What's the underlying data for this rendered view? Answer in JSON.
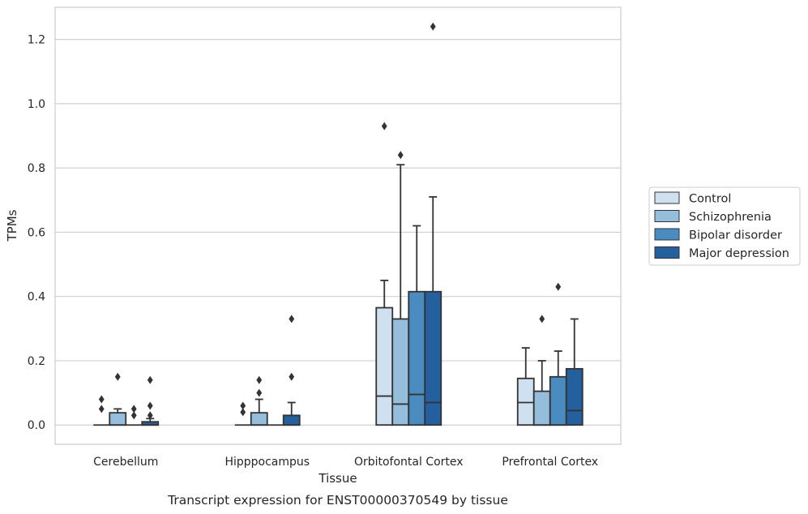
{
  "caption": "Transcript expression for ENST00000370549 by tissue",
  "chart_data": {
    "type": "box",
    "title": "",
    "xlabel": "Tissue",
    "ylabel": "TPMs",
    "ylim": [
      -0.06,
      1.3
    ],
    "yticks": [
      0.0,
      0.2,
      0.4,
      0.6,
      0.8,
      1.0,
      1.2
    ],
    "ytick_labels": [
      "0.0",
      "0.2",
      "0.4",
      "0.6",
      "0.8",
      "1.0",
      "1.2"
    ],
    "grid": "horizontal",
    "legend_position": "right",
    "categories": [
      "Cerebellum",
      "Hipppocampus",
      "Orbitofontal Cortex",
      "Prefrontal Cortex"
    ],
    "colors": [
      "#cfe0f0",
      "#94bedb",
      "#4a8cc0",
      "#245f9e"
    ],
    "series": [
      {
        "name": "Control",
        "boxes": [
          {
            "q1": 0.0,
            "median": 0.0,
            "q3": 0.0,
            "whisker_low": 0.0,
            "whisker_high": 0.0,
            "fliers": [
              0.05,
              0.08
            ]
          },
          {
            "q1": 0.0,
            "median": 0.0,
            "q3": 0.0,
            "whisker_low": 0.0,
            "whisker_high": 0.0,
            "fliers": [
              0.04,
              0.06
            ]
          },
          {
            "q1": 0.0,
            "median": 0.09,
            "q3": 0.365,
            "whisker_low": 0.0,
            "whisker_high": 0.45,
            "fliers": [
              0.93
            ]
          },
          {
            "q1": 0.0,
            "median": 0.07,
            "q3": 0.145,
            "whisker_low": 0.0,
            "whisker_high": 0.24,
            "fliers": []
          }
        ]
      },
      {
        "name": "Schizophrenia",
        "boxes": [
          {
            "q1": 0.0,
            "median": 0.0,
            "q3": 0.038,
            "whisker_low": 0.0,
            "whisker_high": 0.05,
            "fliers": [
              0.15
            ]
          },
          {
            "q1": 0.0,
            "median": 0.0,
            "q3": 0.038,
            "whisker_low": 0.0,
            "whisker_high": 0.08,
            "fliers": [
              0.1,
              0.14
            ]
          },
          {
            "q1": 0.0,
            "median": 0.065,
            "q3": 0.33,
            "whisker_low": 0.0,
            "whisker_high": 0.81,
            "fliers": [
              0.84
            ]
          },
          {
            "q1": 0.0,
            "median": 0.0,
            "q3": 0.105,
            "whisker_low": 0.0,
            "whisker_high": 0.2,
            "fliers": [
              0.33
            ]
          }
        ]
      },
      {
        "name": "Bipolar disorder",
        "boxes": [
          {
            "q1": 0.0,
            "median": 0.0,
            "q3": 0.0,
            "whisker_low": 0.0,
            "whisker_high": 0.0,
            "fliers": [
              0.03,
              0.05
            ]
          },
          {
            "q1": 0.0,
            "median": 0.0,
            "q3": 0.0,
            "whisker_low": 0.0,
            "whisker_high": 0.0,
            "fliers": []
          },
          {
            "q1": 0.0,
            "median": 0.095,
            "q3": 0.415,
            "whisker_low": 0.0,
            "whisker_high": 0.62,
            "fliers": []
          },
          {
            "q1": 0.0,
            "median": 0.0,
            "q3": 0.15,
            "whisker_low": 0.0,
            "whisker_high": 0.23,
            "fliers": [
              0.43
            ]
          }
        ]
      },
      {
        "name": "Major depression",
        "boxes": [
          {
            "q1": 0.0,
            "median": 0.0,
            "q3": 0.01,
            "whisker_low": 0.0,
            "whisker_high": 0.02,
            "fliers": [
              0.03,
              0.06,
              0.14
            ]
          },
          {
            "q1": 0.0,
            "median": 0.0,
            "q3": 0.03,
            "whisker_low": 0.0,
            "whisker_high": 0.07,
            "fliers": [
              0.15,
              0.33
            ]
          },
          {
            "q1": 0.0,
            "median": 0.07,
            "q3": 0.415,
            "whisker_low": 0.0,
            "whisker_high": 0.71,
            "fliers": [
              1.24
            ]
          },
          {
            "q1": 0.0,
            "median": 0.045,
            "q3": 0.175,
            "whisker_low": 0.0,
            "whisker_high": 0.33,
            "fliers": []
          }
        ]
      }
    ]
  }
}
